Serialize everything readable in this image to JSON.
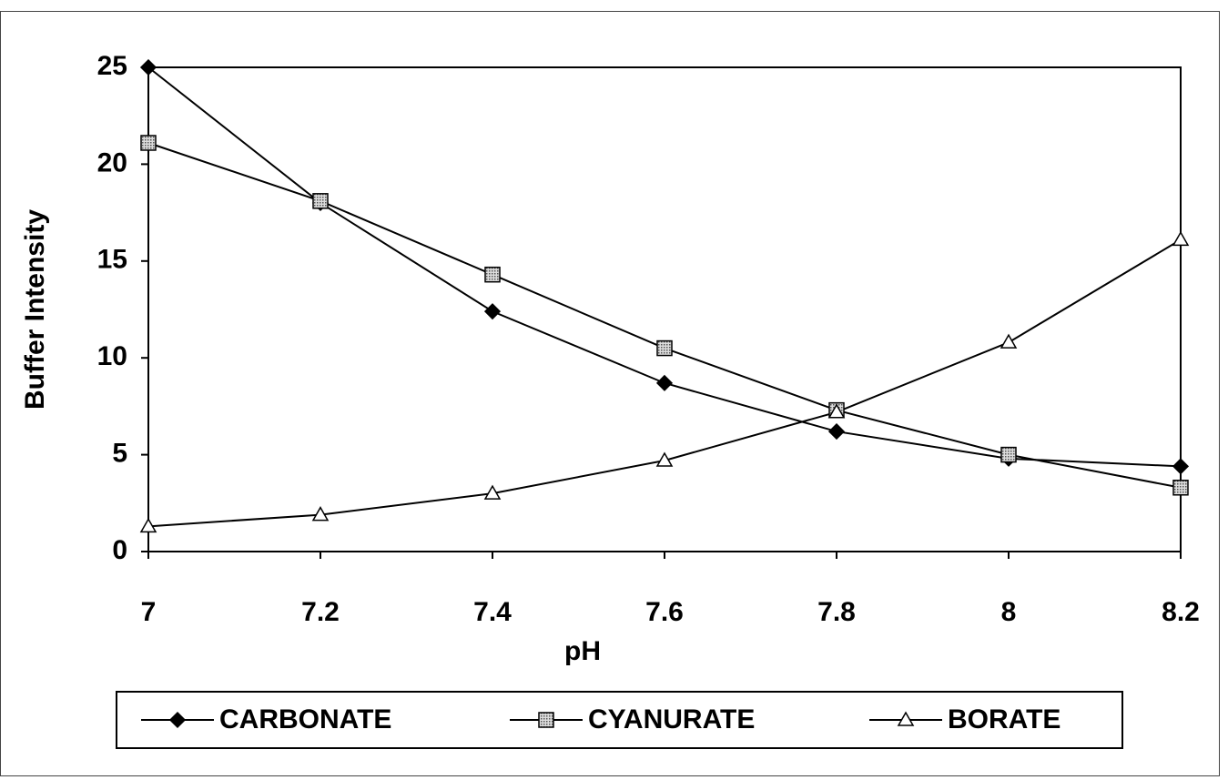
{
  "chart_data": {
    "type": "line",
    "x_label": "pH",
    "y_label": "Buffer Intensity",
    "x": [
      7,
      7.2,
      7.4,
      7.6,
      7.8,
      8,
      8.2
    ],
    "series": [
      {
        "name": "CARBONATE",
        "color": "#000000",
        "marker": "diamond",
        "values": [
          25,
          18,
          12.4,
          8.7,
          6.2,
          4.8,
          4.4
        ]
      },
      {
        "name": "CYANURATE",
        "color": "#000000",
        "marker": "square",
        "values": [
          21.1,
          18.1,
          14.3,
          10.5,
          7.3,
          5.0,
          3.3
        ]
      },
      {
        "name": "BORATE",
        "color": "#000000",
        "marker": "triangle",
        "values": [
          1.3,
          1.9,
          3.0,
          4.7,
          7.2,
          10.8,
          16.1
        ]
      }
    ],
    "xlim": [
      7,
      8.2
    ],
    "xticks": [
      7,
      7.2,
      7.4,
      7.6,
      7.8,
      8,
      8.2
    ],
    "ylim": [
      0,
      25
    ],
    "yticks": [
      0,
      5,
      10,
      15,
      20,
      25
    ],
    "grid": false,
    "legend": "bottom"
  }
}
